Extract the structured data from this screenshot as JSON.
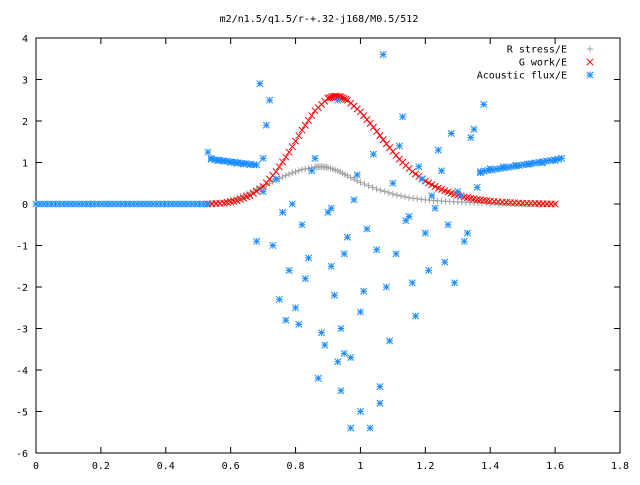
{
  "chart_data": {
    "type": "scatter",
    "title": "m2/n1.5/q1.5/r-+.32-j168/M0.5/512",
    "xlabel": "",
    "ylabel": "",
    "xlim": [
      0,
      1.8
    ],
    "ylim": [
      -6,
      4
    ],
    "xticks": [
      "0",
      "0.2",
      "0.4",
      "0.6",
      "0.8",
      "1",
      "1.2",
      "1.4",
      "1.6",
      "1.8"
    ],
    "yticks": [
      "4",
      "3",
      "2",
      "1",
      "0",
      "-1",
      "-2",
      "-3",
      "-4",
      "-5",
      "-6"
    ],
    "grid": false,
    "legend_position": "top-right",
    "series": [
      {
        "name": "R stress/E",
        "marker": "plus",
        "color": "#a0a0a0",
        "x": [
          0.53,
          0.58,
          0.62,
          0.66,
          0.7,
          0.74,
          0.78,
          0.82,
          0.86,
          0.88,
          0.9,
          0.93,
          0.96,
          1.0,
          1.05,
          1.1,
          1.15,
          1.2,
          1.25,
          1.3,
          1.35,
          1.4,
          1.45,
          1.5,
          1.55,
          1.6
        ],
        "y": [
          0.0,
          0.05,
          0.15,
          0.28,
          0.42,
          0.58,
          0.72,
          0.83,
          0.89,
          0.9,
          0.88,
          0.8,
          0.68,
          0.52,
          0.36,
          0.24,
          0.15,
          0.1,
          0.07,
          0.05,
          0.03,
          0.02,
          0.01,
          0.0,
          0.0,
          0.0
        ]
      },
      {
        "name": "G work/E",
        "marker": "cross",
        "color": "#ff0000",
        "x": [
          0.53,
          0.58,
          0.62,
          0.66,
          0.7,
          0.74,
          0.78,
          0.82,
          0.86,
          0.9,
          0.92,
          0.94,
          0.96,
          1.0,
          1.04,
          1.08,
          1.12,
          1.16,
          1.2,
          1.24,
          1.28,
          1.32,
          1.36,
          1.4,
          1.45,
          1.5,
          1.55,
          1.6
        ],
        "y": [
          0.0,
          0.02,
          0.08,
          0.2,
          0.42,
          0.78,
          1.25,
          1.78,
          2.25,
          2.55,
          2.6,
          2.58,
          2.5,
          2.22,
          1.85,
          1.45,
          1.08,
          0.78,
          0.55,
          0.38,
          0.26,
          0.17,
          0.11,
          0.07,
          0.04,
          0.02,
          0.01,
          0.0
        ]
      },
      {
        "name": "Acoustic flux/E",
        "marker": "star",
        "color": "#1a8cff",
        "x": [
          0.0,
          0.53,
          0.54,
          0.56,
          0.58,
          0.6,
          0.62,
          0.64,
          0.66,
          0.68,
          1.37,
          1.4,
          1.44,
          1.48,
          1.52,
          1.56,
          1.6,
          1.62,
          0.69,
          0.72,
          0.68,
          0.7,
          0.74,
          0.73,
          0.76,
          0.7,
          0.78,
          0.8,
          0.82,
          0.83,
          0.85,
          0.87,
          0.89,
          0.9,
          0.92,
          0.94,
          0.93,
          0.95,
          0.97,
          0.98,
          1.0,
          1.02,
          1.04,
          1.05,
          1.06,
          1.07,
          1.08,
          1.1,
          1.12,
          1.14,
          1.16,
          1.18,
          1.2,
          1.22,
          1.24,
          1.26,
          1.28,
          1.3,
          1.32,
          1.34,
          1.36,
          1.38,
          0.75,
          0.79,
          0.81,
          0.84,
          0.86,
          0.88,
          0.91,
          0.96,
          0.99,
          1.01,
          1.03,
          1.09,
          1.11,
          1.13,
          1.15,
          1.17,
          1.19,
          1.21,
          1.23,
          1.25,
          1.27,
          1.29,
          1.31,
          1.33,
          1.35,
          0.71,
          0.77,
          0.95,
          1.06,
          0.97,
          1.0,
          0.91,
          0.93,
          0.94
        ],
        "y": [
          0.0,
          1.25,
          1.1,
          1.05,
          1.03,
          1.0,
          0.98,
          0.96,
          0.95,
          0.94,
          0.75,
          0.85,
          0.9,
          0.93,
          0.96,
          0.99,
          1.05,
          1.1,
          2.9,
          2.5,
          -0.9,
          1.1,
          0.6,
          -1.0,
          -0.2,
          0.3,
          -1.6,
          -2.5,
          -0.5,
          -1.8,
          0.8,
          -4.2,
          -3.4,
          -0.2,
          -2.2,
          -3.0,
          2.5,
          -1.2,
          -3.7,
          0.1,
          -2.6,
          -0.6,
          1.2,
          -1.1,
          -4.4,
          3.6,
          -2.0,
          0.5,
          1.4,
          -0.4,
          -1.9,
          0.9,
          -0.7,
          0.2,
          1.3,
          -1.4,
          1.7,
          0.3,
          -0.9,
          1.6,
          0.4,
          2.4,
          -2.3,
          0.0,
          -2.9,
          -1.3,
          1.1,
          -3.1,
          -1.5,
          -0.8,
          0.7,
          -2.1,
          -5.4,
          -3.3,
          -1.2,
          2.1,
          -0.3,
          -2.7,
          0.6,
          -1.6,
          -0.1,
          0.8,
          -0.5,
          -1.9,
          0.2,
          -0.7,
          1.8,
          1.9,
          -2.8,
          -3.6,
          -4.8,
          -5.4,
          -5.0,
          -0.1,
          -3.8,
          -4.5
        ]
      }
    ]
  }
}
